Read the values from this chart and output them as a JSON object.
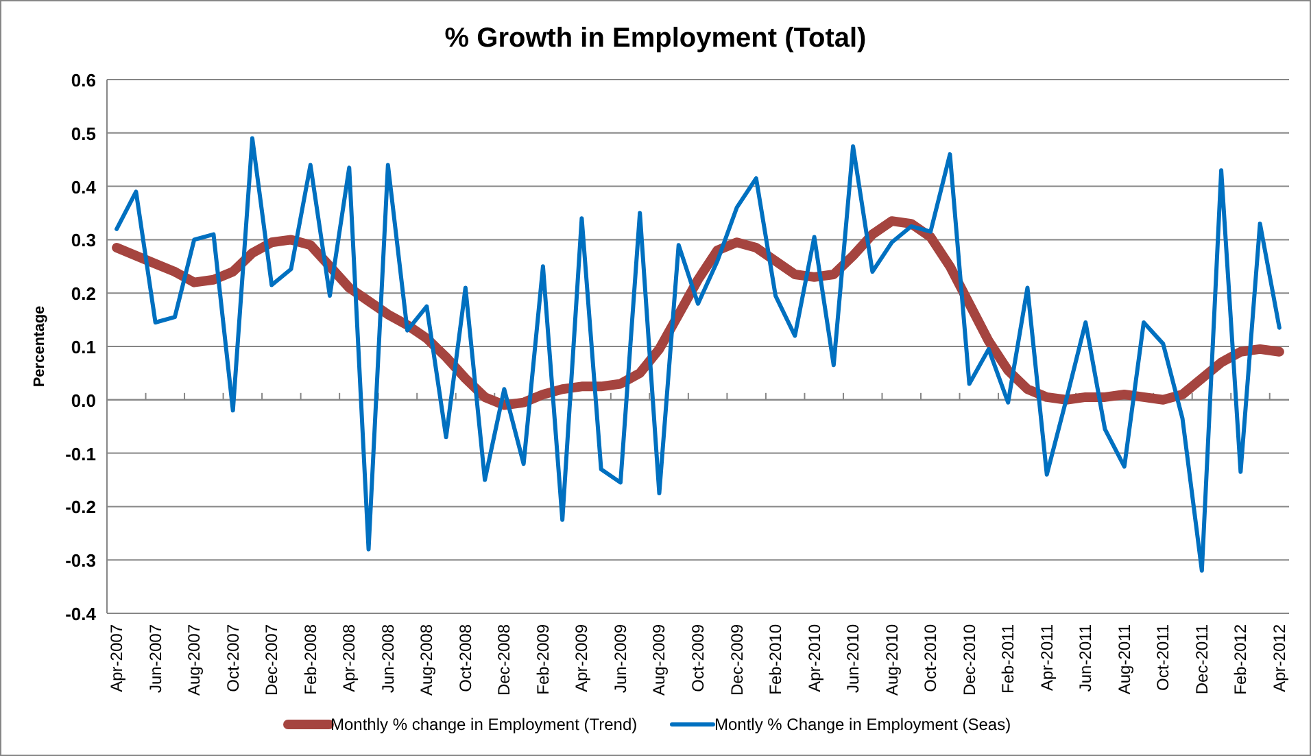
{
  "chart_data": {
    "type": "line",
    "title": "% Growth in Employment (Total)",
    "ylabel": "Percentage",
    "categories": [
      "Apr-2007",
      null,
      "Jun-2007",
      null,
      "Aug-2007",
      null,
      "Oct-2007",
      null,
      "Dec-2007",
      null,
      "Feb-2008",
      null,
      "Apr-2008",
      null,
      "Jun-2008",
      null,
      "Aug-2008",
      null,
      "Oct-2008",
      null,
      "Dec-2008",
      null,
      "Feb-2009",
      null,
      "Apr-2009",
      null,
      "Jun-2009",
      null,
      "Aug-2009",
      null,
      "Oct-2009",
      null,
      "Dec-2009",
      null,
      "Feb-2010",
      null,
      "Apr-2010",
      null,
      "Jun-2010",
      null,
      "Aug-2010",
      null,
      "Oct-2010",
      null,
      "Dec-2010",
      null,
      "Feb-2011",
      null,
      "Apr-2011",
      null,
      "Jun-2011",
      null,
      "Aug-2011",
      null,
      "Oct-2011",
      null,
      "Dec-2011",
      null,
      "Feb-2012",
      null,
      "Apr-2012"
    ],
    "series": [
      {
        "name": "Monthly % change in Employment (Trend)",
        "color": "#a5443f",
        "values": [
          0.285,
          0.27,
          0.255,
          0.24,
          0.22,
          0.225,
          0.24,
          0.275,
          0.295,
          0.3,
          0.29,
          0.25,
          0.21,
          0.185,
          0.16,
          0.14,
          0.115,
          0.08,
          0.04,
          0.005,
          -0.01,
          -0.005,
          0.01,
          0.02,
          0.025,
          0.025,
          0.03,
          0.05,
          0.095,
          0.16,
          0.225,
          0.28,
          0.295,
          0.285,
          0.26,
          0.235,
          0.23,
          0.235,
          0.27,
          0.31,
          0.335,
          0.33,
          0.305,
          0.25,
          0.18,
          0.11,
          0.055,
          0.02,
          0.005,
          0,
          0.005,
          0.005,
          0.01,
          0.005,
          0,
          0.01,
          0.04,
          0.07,
          0.09,
          0.095,
          0.09
        ]
      },
      {
        "name": "Montly % Change in Employment (Seas)",
        "color": "#0070c0",
        "values": [
          0.32,
          0.39,
          0.145,
          0.155,
          0.3,
          0.31,
          -0.02,
          0.49,
          0.215,
          0.245,
          0.44,
          0.195,
          0.435,
          -0.28,
          0.44,
          0.13,
          0.175,
          -0.07,
          0.21,
          -0.15,
          0.02,
          -0.12,
          0.25,
          -0.225,
          0.34,
          -0.13,
          -0.155,
          0.35,
          -0.175,
          0.29,
          0.18,
          0.26,
          0.36,
          0.415,
          0.195,
          0.12,
          0.305,
          0.065,
          0.475,
          0.24,
          0.295,
          0.325,
          0.315,
          0.46,
          0.03,
          0.095,
          -0.005,
          0.21,
          -0.14,
          0,
          0.145,
          -0.055,
          -0.125,
          0.145,
          0.105,
          -0.035,
          -0.32,
          0.43,
          -0.135,
          0.33,
          0.135
        ]
      }
    ],
    "ylim": [
      -0.4,
      0.6
    ],
    "yticks": [
      {
        "value": -0.4,
        "label": "-0.4"
      },
      {
        "value": -0.3,
        "label": "-0.3"
      },
      {
        "value": -0.2,
        "label": "-0.2"
      },
      {
        "value": -0.1,
        "label": "-0.1"
      },
      {
        "value": 0,
        "label": "0.0"
      },
      {
        "value": 0.1,
        "label": "0.1"
      },
      {
        "value": 0.2,
        "label": "0.2"
      },
      {
        "value": 0.3,
        "label": "0.3"
      },
      {
        "value": 0.4,
        "label": "0.4"
      },
      {
        "value": 0.5,
        "label": "0.5"
      },
      {
        "value": 0.6,
        "label": "0.6"
      }
    ],
    "grid": "y",
    "legend": "bottom"
  }
}
